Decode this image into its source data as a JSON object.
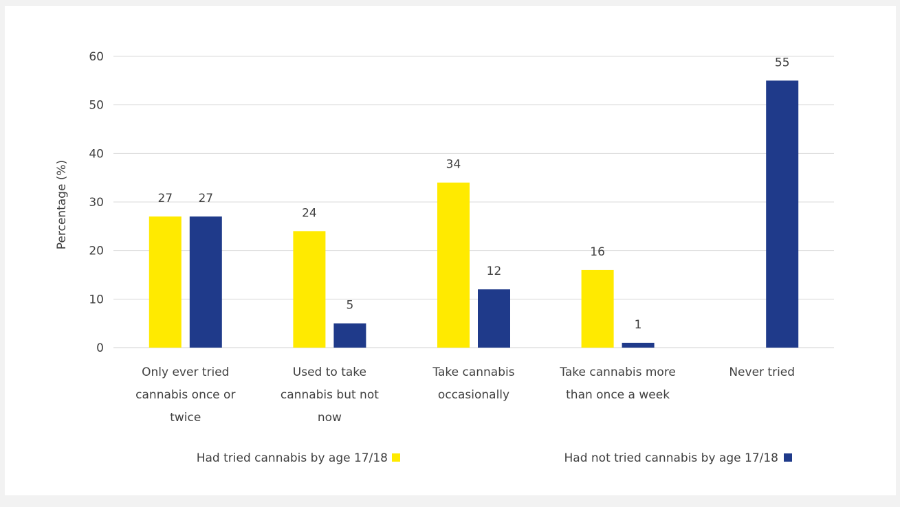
{
  "chart_data": {
    "type": "bar",
    "title": "",
    "xlabel": "",
    "ylabel": "Percentage (%)",
    "ylim": [
      0,
      60
    ],
    "yticks": [
      0,
      10,
      20,
      30,
      40,
      50,
      60
    ],
    "grid": true,
    "legend_position": "bottom",
    "categories": [
      [
        "Only ever tried",
        "cannabis once or",
        "twice"
      ],
      [
        "Used to take",
        "cannabis but not",
        "now"
      ],
      [
        "Take cannabis",
        "occasionally"
      ],
      [
        "Take cannabis more",
        "than once a week"
      ],
      [
        "Never tried"
      ]
    ],
    "series": [
      {
        "name": "Had tried cannabis by age 17/18",
        "color": "#ffea00",
        "values": [
          27,
          24,
          34,
          16,
          null
        ]
      },
      {
        "name": "Had not tried cannabis by age 17/18",
        "color": "#1f3a8a",
        "values": [
          27,
          5,
          12,
          1,
          55
        ]
      }
    ]
  }
}
